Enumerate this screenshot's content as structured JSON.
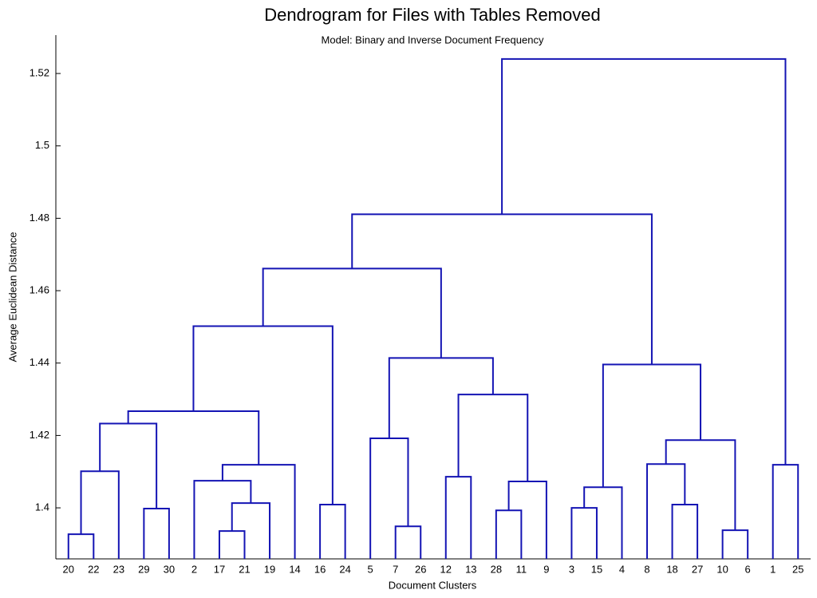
{
  "chart_data": {
    "type": "dendrogram",
    "title": "Dendrogram for Files with Tables Removed",
    "subtitle": "Model: Binary and Inverse Document Frequency",
    "x_label": "Document Clusters",
    "y_label": "Average Euclidean Distance",
    "color": "#1414b4",
    "ylim": [
      1.3859,
      1.5306
    ],
    "yticks": [
      1.4,
      1.42,
      1.44,
      1.46,
      1.48,
      1.5,
      1.52
    ],
    "tree": {
      "height": 1.524,
      "children": [
        {
          "height": 1.4811,
          "children": [
            {
              "height": 1.4661,
              "children": [
                {
                  "height": 1.4502,
                  "children": [
                    {
                      "height": 1.4267,
                      "children": [
                        {
                          "height": 1.4233,
                          "children": [
                            {
                              "height": 1.4101,
                              "children": [
                                {
                                  "height": 1.3927,
                                  "children": [
                                    "20",
                                    "22"
                                  ]
                                },
                                "23"
                              ]
                            },
                            {
                              "height": 1.3998,
                              "children": [
                                "29",
                                "30"
                              ]
                            }
                          ]
                        },
                        {
                          "height": 1.4119,
                          "children": [
                            {
                              "height": 1.4075,
                              "children": [
                                "2",
                                {
                                  "height": 1.4013,
                                  "children": [
                                    {
                                      "height": 1.3936,
                                      "children": [
                                        "17",
                                        "21"
                                      ]
                                    },
                                    "19"
                                  ]
                                }
                              ]
                            },
                            "14"
                          ]
                        }
                      ]
                    },
                    {
                      "height": 1.4009,
                      "children": [
                        "16",
                        "24"
                      ]
                    }
                  ]
                },
                {
                  "height": 1.4414,
                  "children": [
                    {
                      "height": 1.4192,
                      "children": [
                        "5",
                        {
                          "height": 1.3949,
                          "children": [
                            "7",
                            "26"
                          ]
                        }
                      ]
                    },
                    {
                      "height": 1.4313,
                      "children": [
                        {
                          "height": 1.4086,
                          "children": [
                            "12",
                            "13"
                          ]
                        },
                        {
                          "height": 1.4073,
                          "children": [
                            {
                              "height": 1.3993,
                              "children": [
                                "28",
                                "11"
                              ]
                            },
                            "9"
                          ]
                        }
                      ]
                    }
                  ]
                }
              ]
            },
            {
              "height": 1.4396,
              "children": [
                {
                  "height": 1.4057,
                  "children": [
                    {
                      "height": 1.4,
                      "children": [
                        "3",
                        "15"
                      ]
                    },
                    "4"
                  ]
                },
                {
                  "height": 1.4187,
                  "children": [
                    {
                      "height": 1.4121,
                      "children": [
                        "8",
                        {
                          "height": 1.4009,
                          "children": [
                            "18",
                            "27"
                          ]
                        }
                      ]
                    },
                    {
                      "height": 1.3938,
                      "children": [
                        "10",
                        "6"
                      ]
                    }
                  ]
                }
              ]
            }
          ]
        },
        {
          "height": 1.4119,
          "children": [
            "1",
            "25"
          ]
        }
      ]
    }
  }
}
